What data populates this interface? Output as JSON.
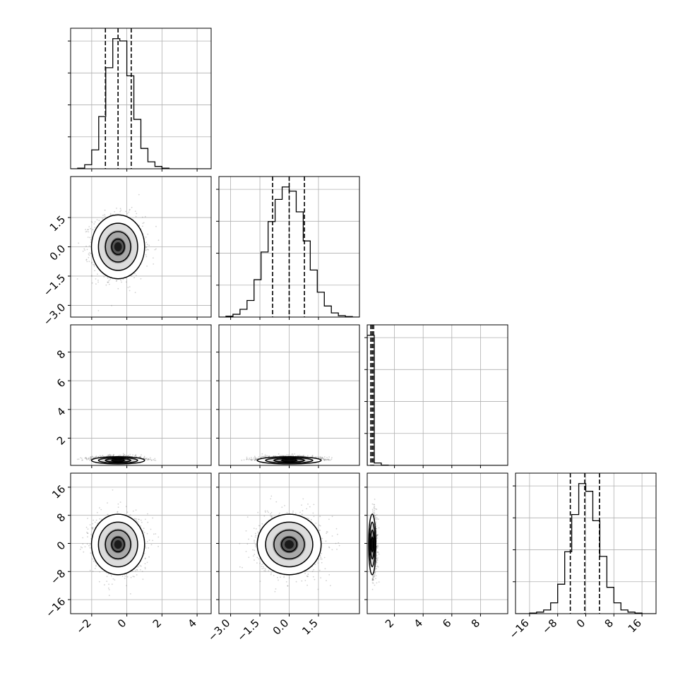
{
  "chart_data": {
    "type": "corner",
    "colors": {
      "line": "#000000",
      "grid": "#b0b0b0",
      "scatter": "#7f7f7f",
      "fill_dark": "#000000",
      "fill_mid": "#7a7a7a",
      "fill_light": "#e6e6e6"
    },
    "grid": true,
    "parameters": [
      {
        "range": [
          -3.2,
          4.8
        ],
        "ticks": [
          -2,
          0,
          2,
          4
        ],
        "tick_labels": [
          "−2",
          "0",
          "2",
          "4"
        ],
        "median": -0.5,
        "sigma": 0.72
      },
      {
        "range": [
          -3.6,
          3.6
        ],
        "ticks": [
          -3.0,
          -1.5,
          0.0,
          1.5
        ],
        "tick_labels": [
          "−3.0",
          "−1.5",
          "0.0",
          "1.5"
        ],
        "median": 0.0,
        "sigma": 0.78
      },
      {
        "range": [
          0.1,
          9.9
        ],
        "ticks": [
          2,
          4,
          6,
          8
        ],
        "tick_labels": [
          "2",
          "4",
          "6",
          "8"
        ],
        "median": 0.45,
        "sigma": 0.12
      },
      {
        "range": [
          -20,
          20
        ],
        "ticks": [
          -16,
          -8,
          0,
          8,
          16
        ],
        "tick_labels": [
          "−16",
          "−8",
          "0",
          "8",
          "16"
        ],
        "median": -0.3,
        "sigma": 4.1
      }
    ],
    "quantiles": [
      [
        -1.22,
        -0.5,
        0.25
      ],
      [
        -0.85,
        0.0,
        0.78
      ],
      [
        0.35,
        0.45,
        0.55
      ],
      [
        -4.4,
        -0.3,
        3.9
      ]
    ],
    "histograms": [
      {
        "edges": [
          -3.2,
          -2.8,
          -2.4,
          -2.0,
          -1.6,
          -1.2,
          -0.8,
          -0.4,
          0.0,
          0.4,
          0.8,
          1.2,
          1.6,
          2.0,
          2.4,
          2.8,
          3.2,
          3.6,
          4.0,
          4.4,
          4.8
        ],
        "counts": [
          0,
          2,
          14,
          65,
          180,
          348,
          448,
          440,
          320,
          170,
          70,
          24,
          8,
          2,
          0,
          0,
          0,
          0,
          0,
          0
        ]
      },
      {
        "edges": [
          -3.6,
          -3.24,
          -2.88,
          -2.52,
          -2.16,
          -1.8,
          -1.44,
          -1.08,
          -0.72,
          -0.36,
          0.0,
          0.36,
          0.72,
          1.08,
          1.44,
          1.8,
          2.16,
          2.52,
          2.88,
          3.24,
          3.6
        ],
        "counts": [
          0,
          3,
          10,
          28,
          60,
          135,
          235,
          345,
          425,
          470,
          455,
          380,
          275,
          170,
          90,
          40,
          15,
          5,
          2,
          0
        ]
      },
      {
        "edges": [
          0.1,
          0.59,
          1.08,
          1.57,
          2.06,
          2.55,
          3.04,
          3.53,
          4.02,
          4.51,
          5.0,
          5.49,
          5.98,
          6.47,
          6.96,
          7.45,
          7.94,
          8.43,
          8.92,
          9.41,
          9.9
        ],
        "counts": [
          980,
          18,
          2,
          0,
          0,
          0,
          0,
          0,
          0,
          0,
          0,
          0,
          0,
          0,
          0,
          0,
          0,
          0,
          0,
          0
        ]
      },
      {
        "edges": [
          -20,
          -18,
          -16,
          -14,
          -12,
          -10,
          -8,
          -6,
          -4,
          -2,
          0,
          2,
          4,
          6,
          8,
          10,
          12,
          14,
          16,
          18,
          20
        ],
        "counts": [
          0,
          0,
          2,
          5,
          12,
          35,
          95,
          200,
          320,
          420,
          395,
          300,
          185,
          85,
          35,
          12,
          5,
          2,
          0,
          0
        ]
      }
    ]
  }
}
